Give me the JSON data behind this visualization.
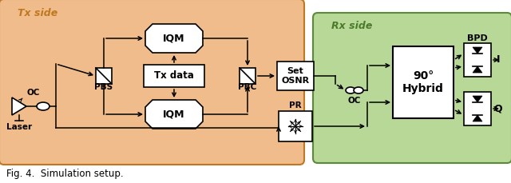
{
  "fig_caption": "Fig. 4.  Simulation setup.",
  "tx_bg_color": "#F0BC8C",
  "tx_border_color": "#C07820",
  "tx_label": "Tx side",
  "rx_bg_color": "#B8D898",
  "rx_border_color": "#5A8A3A",
  "rx_label": "Rx side",
  "label_color_tx": "#C07820",
  "label_color_rx": "#4A7A2A"
}
